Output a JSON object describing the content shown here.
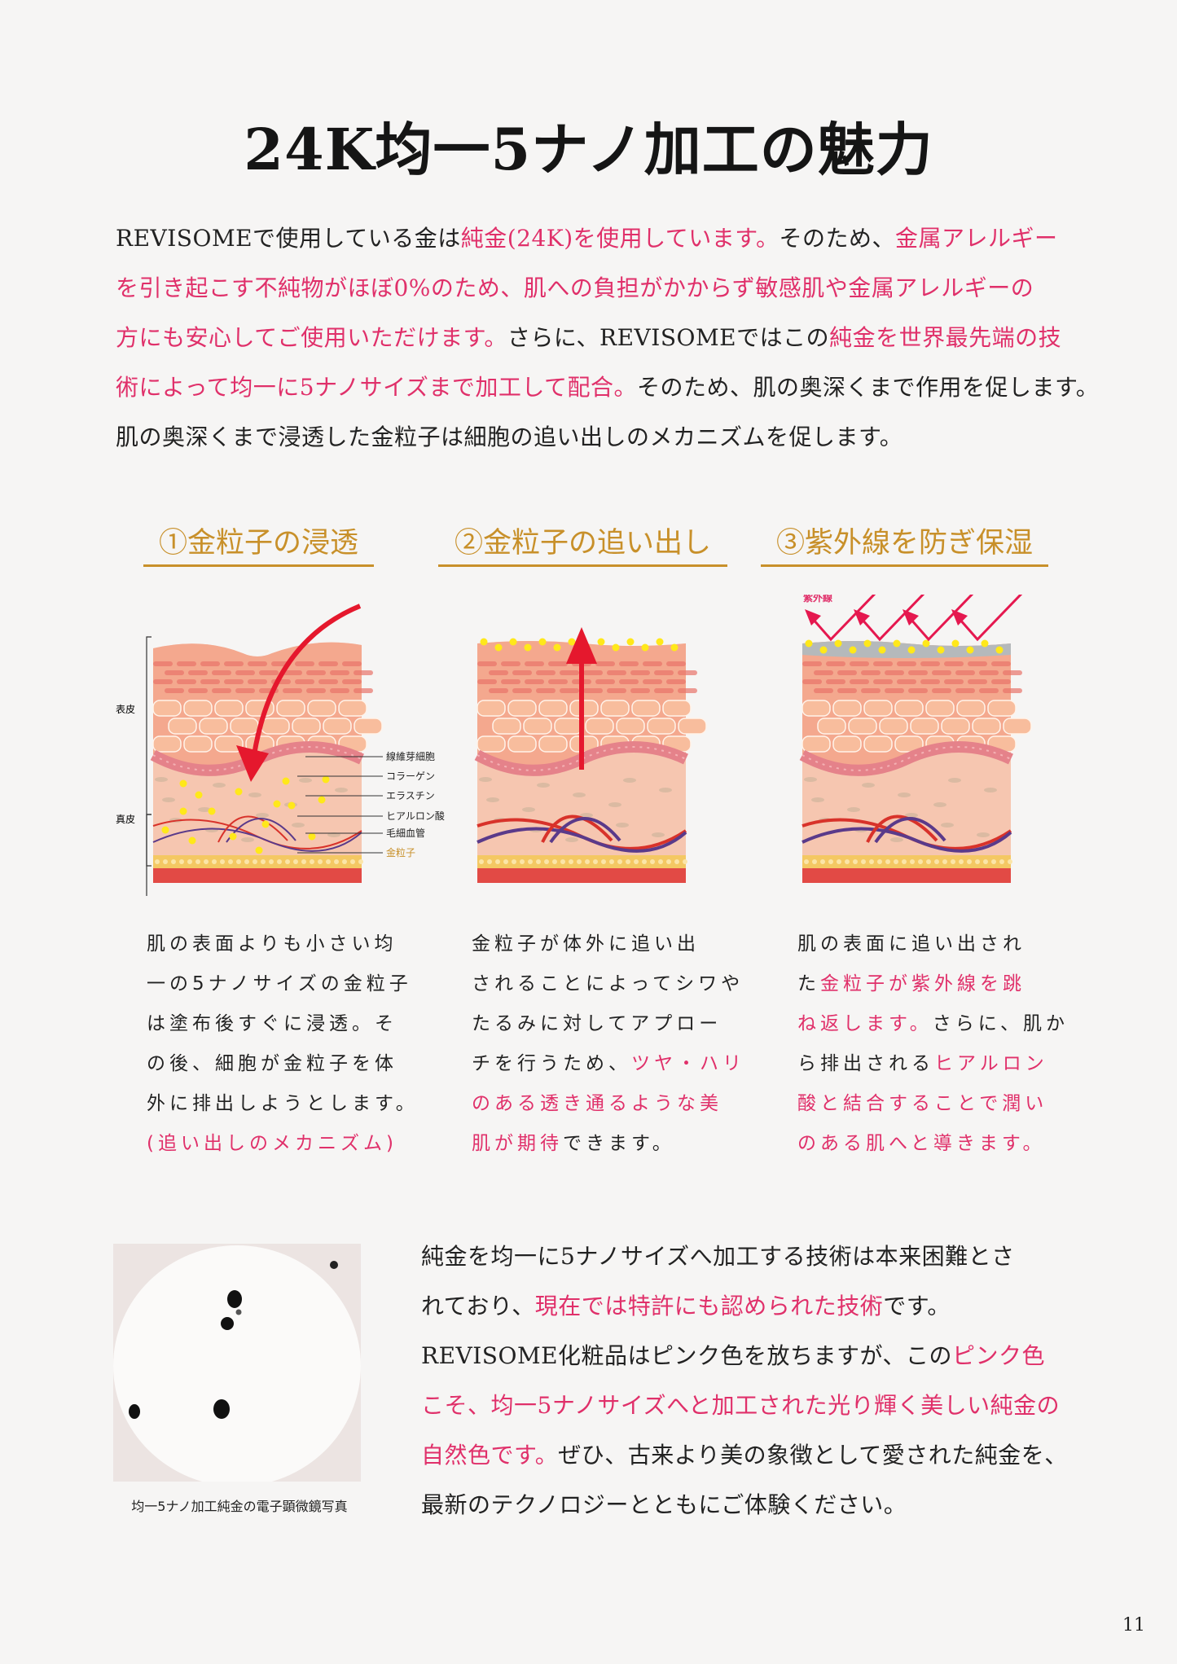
{
  "title": "24K均一5ナノ加工の魅力",
  "colors": {
    "highlight": "#e0306a",
    "gold": "#c8902a",
    "text": "#222222"
  },
  "intro_lines": [
    [
      {
        "t": "REVISOMEで使用している金は"
      },
      {
        "t": "純金(24K)を使用しています。",
        "hl": true
      },
      {
        "t": "そのため、"
      },
      {
        "t": "金属アレルギー",
        "hl": true
      }
    ],
    [
      {
        "t": "を引き起こす不純物がほぼ0%のため、肌への負担がかからず敏感肌や金属アレルギーの",
        "hl": true
      }
    ],
    [
      {
        "t": "方にも安心してご使用いただけます。",
        "hl": true
      },
      {
        "t": "さらに、REVISOMEではこの"
      },
      {
        "t": "純金を世界最先端の技",
        "hl": true
      }
    ],
    [
      {
        "t": "術によって均一に5ナノサイズまで加工して配合。",
        "hl": true
      },
      {
        "t": "そのため、肌の奥深くまで作用を促します。"
      }
    ],
    [
      {
        "t": "肌の奥深くまで浸透した金粒子は細胞の追い出しのメカニズムを促します。"
      }
    ]
  ],
  "sections": [
    {
      "heading": "①金粒子の浸透",
      "diagram": {
        "side_labels": [
          "表皮",
          "真皮"
        ],
        "parts": [
          "線維芽細胞",
          "コラーゲン",
          "エラスチン",
          "ヒアルロン酸",
          "毛細血管",
          "金粒子"
        ],
        "arrow": "down"
      },
      "lines": [
        [
          {
            "t": "肌の表面よりも小さい均"
          }
        ],
        [
          {
            "t": "一の5ナノサイズの金粒子"
          }
        ],
        [
          {
            "t": "は塗布後すぐに浸透。そ"
          }
        ],
        [
          {
            "t": "の後、細胞が金粒子を体"
          }
        ],
        [
          {
            "t": "外に排出しようとします。"
          }
        ],
        [
          {
            "t": "(追い出しのメカニズム)",
            "hl": true
          }
        ]
      ]
    },
    {
      "heading": "②金粒子の追い出し",
      "diagram": {
        "arrow": "up"
      },
      "lines": [
        [
          {
            "t": "金粒子が体外に追い出"
          }
        ],
        [
          {
            "t": "されることによってシワや"
          }
        ],
        [
          {
            "t": "たるみに対してアプロー"
          }
        ],
        [
          {
            "t": "チを行うため、"
          },
          {
            "t": "ツヤ・ハリ",
            "hl": true
          }
        ],
        [
          {
            "t": "のある透き通るような美",
            "hl": true
          }
        ],
        [
          {
            "t": "肌が期待",
            "hl": true
          },
          {
            "t": "できます。"
          }
        ]
      ]
    },
    {
      "heading": "③紫外線を防ぎ保湿",
      "diagram": {
        "uv_label": "紫外線",
        "arrow": "uv"
      },
      "lines": [
        [
          {
            "t": "肌の表面に追い出され"
          }
        ],
        [
          {
            "t": "た"
          },
          {
            "t": "金粒子が紫外線を跳",
            "hl": true
          }
        ],
        [
          {
            "t": "ね返します。",
            "hl": true
          },
          {
            "t": "さらに、肌か"
          }
        ],
        [
          {
            "t": "ら排出される"
          },
          {
            "t": "ヒアルロン",
            "hl": true
          }
        ],
        [
          {
            "t": "酸と結合することで潤い",
            "hl": true
          }
        ],
        [
          {
            "t": "のある肌へと導きます。",
            "hl": true
          }
        ]
      ]
    }
  ],
  "photo_caption": "均一5ナノ加工純金の電子顕微鏡写真",
  "outro_lines": [
    [
      {
        "t": "純金を均一に5ナノサイズへ加工する技術は本来困難とさ"
      }
    ],
    [
      {
        "t": "れており、"
      },
      {
        "t": "現在では特許にも認められた技術",
        "hl": true
      },
      {
        "t": "です。"
      }
    ],
    [
      {
        "t": "REVISOME化粧品はピンク色を放ちますが、この"
      },
      {
        "t": "ピンク色",
        "hl": true
      }
    ],
    [
      {
        "t": "こそ、均一5ナノサイズへと加工された光り輝く美しい純金の",
        "hl": true
      }
    ],
    [
      {
        "t": "自然色です。",
        "hl": true
      },
      {
        "t": "ぜひ、古来より美の象徴として愛された純金を、"
      }
    ],
    [
      {
        "t": "最新のテクノロジーとともにご体験ください。"
      }
    ]
  ],
  "page_number": "11"
}
